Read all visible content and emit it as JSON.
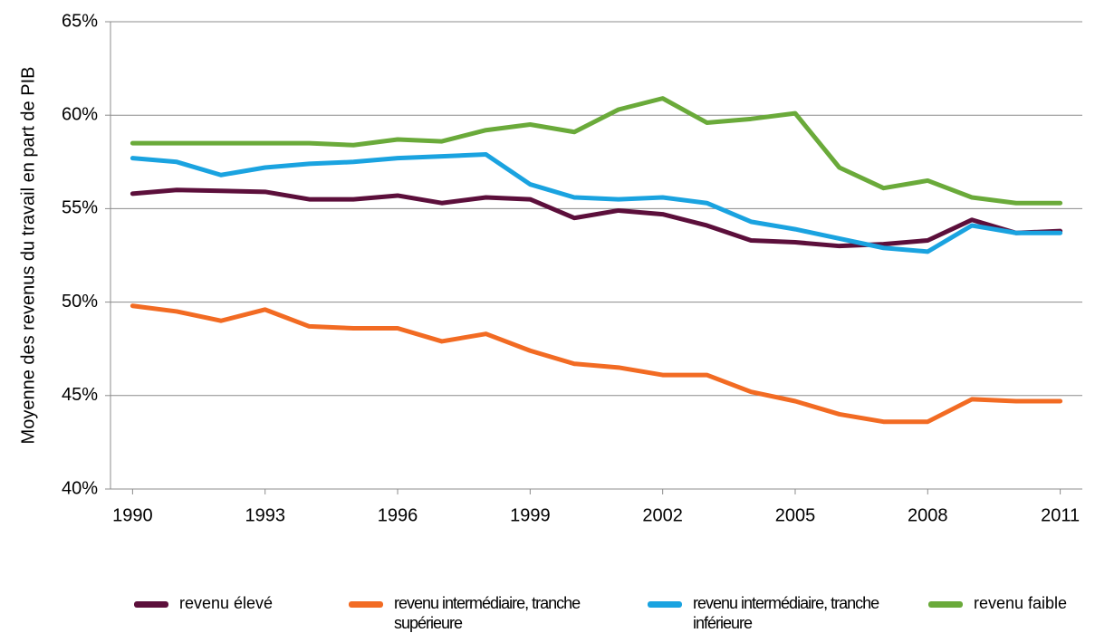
{
  "chart_data": {
    "type": "line",
    "y_label": "Moyenne des revenus du travail en part de PIB",
    "x": [
      1990,
      1991,
      1992,
      1993,
      1994,
      1995,
      1996,
      1997,
      1998,
      1999,
      2000,
      2001,
      2002,
      2003,
      2004,
      2005,
      2006,
      2007,
      2008,
      2009,
      2010,
      2011
    ],
    "xlim": [
      1989.5,
      2011.5
    ],
    "xticks": [
      1990,
      1993,
      1996,
      1999,
      2002,
      2005,
      2008,
      2011
    ],
    "ylim": [
      40,
      65
    ],
    "yticks": [
      {
        "value": 40,
        "label": "40%"
      },
      {
        "value": 45,
        "label": "45%"
      },
      {
        "value": 50,
        "label": "50%"
      },
      {
        "value": 55,
        "label": "55%"
      },
      {
        "value": 60,
        "label": "60%"
      },
      {
        "value": 65,
        "label": "65%"
      }
    ],
    "grid": true,
    "legend": "bottom",
    "series": [
      {
        "name": "revenu élevé",
        "color": "#5c0f3b",
        "values": [
          55.8,
          56.0,
          55.95,
          55.9,
          55.5,
          55.5,
          55.7,
          55.3,
          55.6,
          55.5,
          54.5,
          54.9,
          54.7,
          54.1,
          53.3,
          53.2,
          53.0,
          53.1,
          53.3,
          54.4,
          53.7,
          53.8
        ]
      },
      {
        "name": "revenu intermédiaire, tranche supérieure",
        "color": "#f26b23",
        "values": [
          49.8,
          49.5,
          49.0,
          49.6,
          48.7,
          48.6,
          48.6,
          47.9,
          48.3,
          47.4,
          46.7,
          46.5,
          46.1,
          46.1,
          45.2,
          44.7,
          44.0,
          43.6,
          43.6,
          44.8,
          44.7,
          44.7
        ]
      },
      {
        "name": "revenu intermédiaire, tranche inférieure",
        "color": "#1aa3e0",
        "values": [
          57.7,
          57.5,
          56.8,
          57.2,
          57.4,
          57.5,
          57.7,
          57.8,
          57.9,
          56.3,
          55.6,
          55.5,
          55.6,
          55.3,
          54.3,
          53.9,
          53.4,
          52.9,
          52.7,
          54.1,
          53.7,
          53.7
        ]
      },
      {
        "name": "revenu faible",
        "color": "#6aaa3a",
        "values": [
          58.5,
          58.5,
          58.5,
          58.5,
          58.5,
          58.4,
          58.7,
          58.6,
          59.2,
          59.5,
          59.1,
          60.3,
          60.9,
          59.6,
          59.8,
          60.1,
          57.2,
          56.1,
          56.5,
          55.6,
          55.3,
          55.3
        ]
      }
    ]
  }
}
